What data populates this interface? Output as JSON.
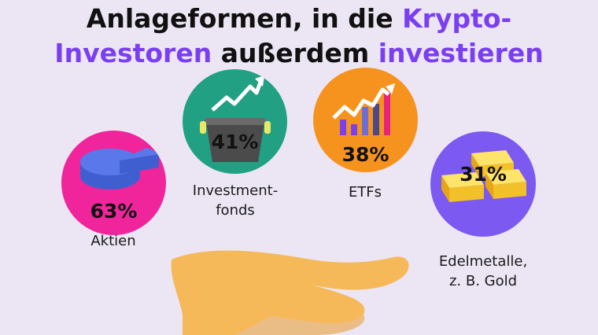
{
  "title": {
    "part1": "Anlageformen, in die ",
    "part2": "Krypto-",
    "part3": "Investoren",
    "part4": " außerdem ",
    "part5": "investieren"
  },
  "colors": {
    "accent": "#7b3ff2",
    "background": "#ece6f4",
    "aktien": "#f0259c",
    "fonds": "#21a083",
    "etfs": "#f6921e",
    "edelmetalle": "#7c59f0",
    "hand": "#f6b95a"
  },
  "chart_data": {
    "type": "infographic",
    "categories": [
      "Aktien",
      "Investmentfonds",
      "ETFs",
      "Edelmetalle, z. B. Gold"
    ],
    "values": [
      63,
      41,
      38,
      31
    ],
    "unit": "%"
  },
  "items": [
    {
      "key": "aktien",
      "percent_label": "63%",
      "label": "Aktien",
      "icon": "pie-chart-icon"
    },
    {
      "key": "fonds",
      "percent_label": "41%",
      "label": "Investment-\nfonds",
      "icon": "pot-with-trend-line-icon"
    },
    {
      "key": "etfs",
      "percent_label": "38%",
      "label": "ETFs",
      "icon": "bar-chart-trend-icon"
    },
    {
      "key": "edelmetalle",
      "percent_label": "31%",
      "label": "Edelmetalle,\nz. B. Gold",
      "icon": "gold-bars-icon"
    }
  ]
}
